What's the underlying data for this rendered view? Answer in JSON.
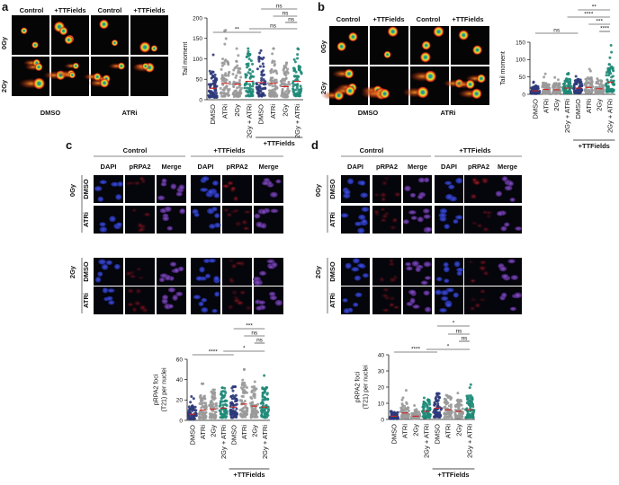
{
  "panels": {
    "a": {
      "letter": "a",
      "image_cols": [
        "Control",
        "+TTFields",
        "Control",
        "+TTFields"
      ],
      "image_rows": [
        "0Gy",
        "2Gy"
      ],
      "group_labels": [
        "DMSO",
        "ATRi"
      ]
    },
    "b": {
      "letter": "b",
      "image_cols": [
        "Control",
        "+TTFields",
        "Control",
        "+TTFields"
      ],
      "image_rows": [
        "0Gy",
        "2Gy"
      ],
      "group_labels": [
        "DMSO",
        "ATRi"
      ]
    },
    "c": {
      "letter": "c",
      "group_headers": [
        "Control",
        "+TTFields"
      ],
      "channel_headers": [
        "DAPI",
        "pRPA2",
        "Merge",
        "DAPI",
        "pRPA2",
        "Merge"
      ],
      "dose_labels": [
        "0Gy",
        "2Gy"
      ],
      "treatment_labels": [
        "DMSO",
        "ATRi",
        "DMSO",
        "ATRi"
      ]
    },
    "d": {
      "letter": "d",
      "group_headers": [
        "Control",
        "+TTFields"
      ],
      "channel_headers": [
        "DAPI",
        "pRPA2",
        "Merge",
        "DAPI",
        "pRPA2",
        "Merge"
      ],
      "dose_labels": [
        "0Gy",
        "2Gy"
      ],
      "treatment_labels": [
        "DMSO",
        "ATRi",
        "DMSO",
        "ATRi"
      ]
    }
  },
  "colors": {
    "navy": "#2c3a7a",
    "grey": "#9a9a9a",
    "teal": "#1f8a78",
    "mean_line": "#d42020"
  },
  "chart_data": [
    {
      "type": "scatter",
      "panel": "a",
      "categories": [
        "DMSO",
        "ATRi",
        "2Gy",
        "2Gy + ATRi",
        "DMSO",
        "ATRi",
        "2Gy",
        "2Gy + ATRi"
      ],
      "group_label": "+TTFields",
      "ylabel": "Tail moment",
      "ylim": [
        0,
        200
      ],
      "yticks": [
        0,
        50,
        100,
        150,
        200
      ],
      "means": [
        28,
        40,
        38,
        45,
        42,
        40,
        32,
        45
      ],
      "maxes": [
        110,
        170,
        125,
        125,
        120,
        125,
        90,
        125
      ],
      "significance": [
        {
          "from": 0,
          "to": 4,
          "label": "**"
        },
        {
          "from": 4,
          "to": 7,
          "label": "ns"
        },
        {
          "from": 5,
          "to": 7,
          "label": "ns"
        },
        {
          "from": 6,
          "to": 7,
          "label": "ns"
        },
        {
          "from": 3,
          "to": 7,
          "label": "ns"
        }
      ]
    },
    {
      "type": "scatter",
      "panel": "b",
      "categories": [
        "DMSO",
        "ATRi",
        "2Gy",
        "2Gy + ATRi",
        "DMSO",
        "ATRi",
        "2Gy",
        "2Gy + ATRi"
      ],
      "group_label": "+TTFields",
      "ylabel": "Tail moment",
      "ylim": [
        0,
        150
      ],
      "yticks": [
        0,
        50,
        100,
        150
      ],
      "means": [
        10,
        14,
        13,
        18,
        18,
        20,
        16,
        35
      ],
      "maxes": [
        55,
        90,
        60,
        70,
        70,
        80,
        75,
        150
      ],
      "significance": [
        {
          "from": 0,
          "to": 4,
          "label": "ns"
        },
        {
          "from": 4,
          "to": 7,
          "label": "**"
        },
        {
          "from": 3,
          "to": 7,
          "label": "****"
        },
        {
          "from": 5,
          "to": 7,
          "label": "***"
        },
        {
          "from": 6,
          "to": 7,
          "label": "****"
        }
      ]
    },
    {
      "type": "scatter",
      "panel": "c",
      "categories": [
        "DMSO",
        "ATRi",
        "2Gy",
        "2Gy + ATRi",
        "DMSO",
        "ATRi",
        "2Gy",
        "2Gy + ATRi"
      ],
      "group_label": "+TTFields",
      "ylabel": "pRPA2 foci\n(T21) per nuclei",
      "ylim": [
        0,
        60
      ],
      "yticks": [
        0,
        20,
        40,
        60
      ],
      "means": [
        6,
        10,
        11,
        12,
        13,
        16,
        14,
        13
      ],
      "maxes": [
        25,
        36,
        30,
        32,
        33,
        50,
        48,
        44
      ],
      "significance": [
        {
          "from": 0,
          "to": 4,
          "label": "****"
        },
        {
          "from": 4,
          "to": 7,
          "label": "***"
        },
        {
          "from": 5,
          "to": 7,
          "label": "ns"
        },
        {
          "from": 6,
          "to": 7,
          "label": "ns"
        },
        {
          "from": 3,
          "to": 7,
          "label": "*"
        }
      ]
    },
    {
      "type": "scatter",
      "panel": "d",
      "categories": [
        "DMSO",
        "ATRi",
        "2Gy",
        "2Gy + ATRi",
        "DMSO",
        "ATRi",
        "2Gy",
        "2Gy + ATRi"
      ],
      "group_label": "+TTFields",
      "ylabel": "pRPA2 foci\n(T21) per nuclei",
      "ylim": [
        0,
        40
      ],
      "yticks": [
        0,
        10,
        20,
        30,
        40
      ],
      "means": [
        2,
        4,
        2,
        5,
        7,
        6,
        5,
        6
      ],
      "maxes": [
        14,
        19,
        13,
        18,
        16,
        29,
        18,
        30
      ],
      "significance": [
        {
          "from": 0,
          "to": 4,
          "label": "****"
        },
        {
          "from": 4,
          "to": 7,
          "label": "*"
        },
        {
          "from": 5,
          "to": 7,
          "label": "ns"
        },
        {
          "from": 6,
          "to": 7,
          "label": "ns"
        },
        {
          "from": 3,
          "to": 7,
          "label": "*"
        }
      ]
    }
  ]
}
